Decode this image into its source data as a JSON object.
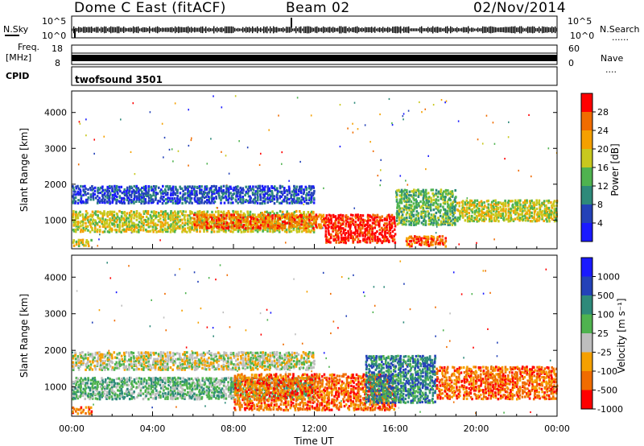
{
  "header": {
    "station": "Dome C East (fitACF)",
    "beam": "Beam 02",
    "date": "02/Nov/2014"
  },
  "top_panels": {
    "nsky_label": "N.Sky",
    "nsky_ticks": [
      "10^5",
      "10^0"
    ],
    "nsearch_label": "N.Search",
    "nsearch_ticks": [
      "10^5",
      "10^0"
    ],
    "freq_label_1": "Freq.",
    "freq_label_2": "[MHz]",
    "freq_ticks": [
      "18",
      "8"
    ],
    "nave_label": "Nave",
    "nave_ticks": [
      "60",
      "0"
    ],
    "cpid_label": "CPID",
    "cpid_value": "twofsound 3501",
    "legend_dots": "......",
    "legend_dots_short": "...."
  },
  "chart_data": [
    {
      "type": "heatmap",
      "name": "power",
      "xlabel": "Time UT",
      "ylabel": "Slant Range [km]",
      "xlim": [
        0,
        24
      ],
      "ylim": [
        200,
        4600
      ],
      "x_ticks": [
        "00:00",
        "04:00",
        "08:00",
        "12:00",
        "16:00",
        "20:00",
        "00:00"
      ],
      "y_ticks": [
        1000,
        2000,
        3000,
        4000
      ],
      "colorbar_label": "Power [dB]",
      "colorbar_ticks": [
        "4",
        "8",
        "12",
        "16",
        "20",
        "24",
        "28"
      ],
      "colors": [
        "#1a1aff",
        "#2442b8",
        "#2e8a7a",
        "#4fb34f",
        "#c8c81e",
        "#f5a000",
        "#f06c00",
        "#ff0000"
      ],
      "bands": [
        {
          "t0": 0.0,
          "t1": 12.0,
          "r0": 1500,
          "r1": 2000,
          "level": 1
        },
        {
          "t0": 0.0,
          "t1": 12.0,
          "r0": 700,
          "r1": 1300,
          "level": 4
        },
        {
          "t0": 6.0,
          "t1": 12.5,
          "r0": 800,
          "r1": 1200,
          "level": 6
        },
        {
          "t0": 12.5,
          "t1": 16.0,
          "r0": 400,
          "r1": 1200,
          "level": 7
        },
        {
          "t0": 0.0,
          "t1": 1.0,
          "r0": 300,
          "r1": 500,
          "level": 4
        },
        {
          "t0": 16.0,
          "t1": 19.0,
          "r0": 900,
          "r1": 1900,
          "level": 3
        },
        {
          "t0": 16.5,
          "t1": 18.5,
          "r0": 300,
          "r1": 600,
          "level": 6
        },
        {
          "t0": 19.0,
          "t1": 24.0,
          "r0": 1000,
          "r1": 1600,
          "level": 4
        }
      ]
    },
    {
      "type": "heatmap",
      "name": "velocity",
      "xlabel": "Time UT",
      "ylabel": "Slant Range [km]",
      "xlim": [
        0,
        24
      ],
      "ylim": [
        200,
        4600
      ],
      "x_ticks": [
        "00:00",
        "04:00",
        "08:00",
        "12:00",
        "16:00",
        "20:00",
        "00:00"
      ],
      "y_ticks": [
        1000,
        2000,
        3000,
        4000
      ],
      "colorbar_label": "Velocity [m s⁻¹]",
      "colorbar_ticks": [
        "1000",
        "500",
        "100",
        "25",
        "-25",
        "-100",
        "-500",
        "-1000"
      ],
      "colors": [
        "#1a1aff",
        "#2442b8",
        "#2e8a7a",
        "#4fb34f",
        "#bebebe",
        "#f5a000",
        "#f06c00",
        "#ff0000"
      ],
      "bands": [
        {
          "t0": 0.0,
          "t1": 12.0,
          "r0": 1500,
          "r1": 2000,
          "level": 4
        },
        {
          "t0": 0.0,
          "t1": 12.0,
          "r0": 700,
          "r1": 1300,
          "level": 3
        },
        {
          "t0": 8.0,
          "t1": 16.0,
          "r0": 400,
          "r1": 1400,
          "level": 6
        },
        {
          "t0": 0.0,
          "t1": 1.0,
          "r0": 300,
          "r1": 500,
          "level": 6
        },
        {
          "t0": 14.5,
          "t1": 18.0,
          "r0": 600,
          "r1": 1900,
          "level": 2
        },
        {
          "t0": 18.0,
          "t1": 24.0,
          "r0": 700,
          "r1": 1600,
          "level": 6
        }
      ]
    }
  ]
}
